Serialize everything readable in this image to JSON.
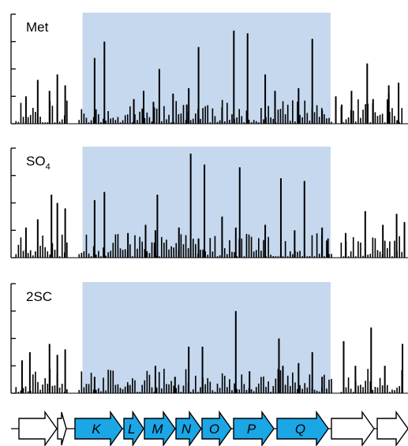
{
  "colors": {
    "highlight": "#c5d8ee",
    "bar": "#000000",
    "gene_highlight": "#1ba6e6",
    "gene_plain": "#ffffff",
    "outline": "#000000"
  },
  "chart_data": [
    {
      "type": "bar",
      "name": "Met",
      "title": "Met",
      "ylim": [
        0,
        4
      ],
      "yticks": 4,
      "highlight_region": [
        0.18,
        0.805
      ],
      "samples": 160,
      "seed": 11,
      "peaks": [
        {
          "x": 0.205,
          "v": 2.4
        },
        {
          "x": 0.23,
          "v": 3.0
        },
        {
          "x": 0.305,
          "v": 0.9
        },
        {
          "x": 0.33,
          "v": 1.2
        },
        {
          "x": 0.355,
          "v": 0.8
        },
        {
          "x": 0.37,
          "v": 2.0
        },
        {
          "x": 0.405,
          "v": 1.1
        },
        {
          "x": 0.44,
          "v": 0.7
        },
        {
          "x": 0.47,
          "v": 2.8
        },
        {
          "x": 0.445,
          "v": 1.3
        },
        {
          "x": 0.53,
          "v": 0.6
        },
        {
          "x": 0.56,
          "v": 3.4
        },
        {
          "x": 0.595,
          "v": 3.3
        },
        {
          "x": 0.64,
          "v": 1.8
        },
        {
          "x": 0.665,
          "v": 1.2
        },
        {
          "x": 0.76,
          "v": 3.1
        },
        {
          "x": 0.725,
          "v": 1.3
        },
        {
          "x": 0.785,
          "v": 0.5
        },
        {
          "x": 0.82,
          "v": 1.0
        },
        {
          "x": 0.835,
          "v": 0.7
        },
        {
          "x": 0.86,
          "v": 1.2
        },
        {
          "x": 0.9,
          "v": 2.2
        },
        {
          "x": 0.955,
          "v": 1.4
        },
        {
          "x": 0.915,
          "v": 0.9
        },
        {
          "x": 0.98,
          "v": 1.5
        },
        {
          "x": 0.955,
          "v": 1.1
        }
      ],
      "peaks_extra": [
        {
          "x": 0.06,
          "v": 1.6
        },
        {
          "x": 0.09,
          "v": 1.2
        },
        {
          "x": 0.13,
          "v": 1.4
        },
        {
          "x": 0.11,
          "v": 1.8
        },
        {
          "x": 0.03,
          "v": 1.0
        }
      ]
    },
    {
      "type": "bar",
      "name": "SO4",
      "title": "SO",
      "title_sub": "4",
      "ylim": [
        0,
        4
      ],
      "yticks": 4,
      "highlight_region": [
        0.18,
        0.805
      ],
      "samples": 160,
      "seed": 23,
      "peaks": [
        {
          "x": 0.205,
          "v": 2.1
        },
        {
          "x": 0.23,
          "v": 2.4
        },
        {
          "x": 0.29,
          "v": 0.9
        },
        {
          "x": 0.335,
          "v": 1.2
        },
        {
          "x": 0.36,
          "v": 1.0
        },
        {
          "x": 0.365,
          "v": 2.3
        },
        {
          "x": 0.42,
          "v": 1.1
        },
        {
          "x": 0.47,
          "v": 0.7
        },
        {
          "x": 0.45,
          "v": 3.8
        },
        {
          "x": 0.485,
          "v": 3.4
        },
        {
          "x": 0.53,
          "v": 1.5
        },
        {
          "x": 0.565,
          "v": 1.1
        },
        {
          "x": 0.575,
          "v": 3.3
        },
        {
          "x": 0.64,
          "v": 1.2
        },
        {
          "x": 0.68,
          "v": 2.9
        },
        {
          "x": 0.715,
          "v": 1.0
        },
        {
          "x": 0.74,
          "v": 2.8
        },
        {
          "x": 0.785,
          "v": 1.1
        },
        {
          "x": 0.8,
          "v": 0.7
        },
        {
          "x": 0.845,
          "v": 0.9
        },
        {
          "x": 0.895,
          "v": 1.7
        },
        {
          "x": 0.94,
          "v": 1.2
        },
        {
          "x": 0.975,
          "v": 1.6
        },
        {
          "x": 0.995,
          "v": 1.3
        }
      ],
      "peaks_extra": [
        {
          "x": 0.06,
          "v": 1.4
        },
        {
          "x": 0.095,
          "v": 2.3
        },
        {
          "x": 0.13,
          "v": 1.8
        },
        {
          "x": 0.11,
          "v": 2.0
        },
        {
          "x": 0.03,
          "v": 1.1
        }
      ]
    },
    {
      "type": "bar",
      "name": "2SC",
      "title": "2SC",
      "ylim": [
        0,
        4
      ],
      "yticks": 4,
      "highlight_region": [
        0.18,
        0.805
      ],
      "samples": 160,
      "seed": 37,
      "peaks": [
        {
          "x": 0.205,
          "v": 0.6
        },
        {
          "x": 0.29,
          "v": 0.3
        },
        {
          "x": 0.36,
          "v": 1.0
        },
        {
          "x": 0.41,
          "v": 0.6
        },
        {
          "x": 0.445,
          "v": 1.7
        },
        {
          "x": 0.48,
          "v": 1.7
        },
        {
          "x": 0.565,
          "v": 3.0
        },
        {
          "x": 0.6,
          "v": 0.8
        },
        {
          "x": 0.675,
          "v": 2.0
        },
        {
          "x": 0.685,
          "v": 1.0
        },
        {
          "x": 0.725,
          "v": 1.1
        },
        {
          "x": 0.76,
          "v": 1.5
        },
        {
          "x": 0.785,
          "v": 0.6
        },
        {
          "x": 0.84,
          "v": 1.9
        },
        {
          "x": 0.87,
          "v": 1.0
        },
        {
          "x": 0.91,
          "v": 2.4
        },
        {
          "x": 0.945,
          "v": 1.0
        },
        {
          "x": 0.99,
          "v": 1.8
        }
      ],
      "peaks_extra": [
        {
          "x": 0.04,
          "v": 1.5
        },
        {
          "x": 0.09,
          "v": 1.8
        },
        {
          "x": 0.13,
          "v": 1.6
        },
        {
          "x": 0.11,
          "v": 1.4
        },
        {
          "x": 0.02,
          "v": 1.2
        }
      ]
    }
  ],
  "genes": [
    {
      "label": "",
      "highlight": false
    },
    {
      "label": "",
      "highlight": false
    },
    {
      "label": "K",
      "highlight": true
    },
    {
      "label": "L",
      "highlight": true
    },
    {
      "label": "M",
      "highlight": true
    },
    {
      "label": "N",
      "highlight": true
    },
    {
      "label": "O",
      "highlight": true
    },
    {
      "label": "P",
      "highlight": true
    },
    {
      "label": "Q",
      "highlight": true
    },
    {
      "label": "",
      "highlight": false
    },
    {
      "label": "",
      "highlight": false
    }
  ]
}
